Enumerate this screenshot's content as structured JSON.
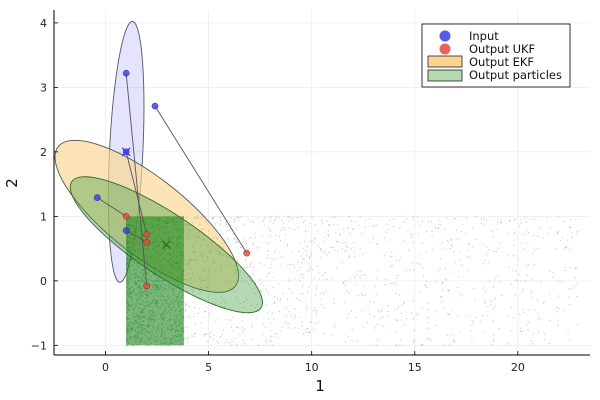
{
  "chart_data": {
    "type": "scatter",
    "title": "",
    "xlabel": "1",
    "ylabel": "2",
    "xlim": [
      -2.5,
      23.5
    ],
    "ylim": [
      -1.15,
      4.2
    ],
    "xticks": [
      0,
      5,
      10,
      15,
      20
    ],
    "yticks": [
      -1,
      0,
      1,
      2,
      3,
      4
    ],
    "grid": true,
    "legend_position": "top-right",
    "colors": {
      "input": "#3b3be8",
      "ukf": "#e8473c",
      "ekf_fill": "#fbd58f",
      "particles": "#1a8a1a",
      "connector": "#555555",
      "frame": "#000000"
    },
    "series": [
      {
        "name": "Input",
        "kind": "points",
        "points": [
          [
            1.0,
            3.22
          ],
          [
            2.4,
            2.71
          ],
          [
            1.0,
            2.0
          ],
          [
            -0.4,
            1.29
          ],
          [
            1.0,
            0.78
          ]
        ]
      },
      {
        "name": "Output UKF",
        "kind": "points",
        "points": [
          [
            2.0,
            -0.08
          ],
          [
            6.85,
            0.43
          ],
          [
            2.0,
            0.72
          ],
          [
            1.0,
            1.0
          ],
          [
            2.0,
            0.6
          ]
        ]
      },
      {
        "name": "Output EKF",
        "kind": "ellipse",
        "center": [
          2.0,
          1.0
        ],
        "semi_axes": [
          4.55,
          0.72
        ],
        "angle_deg": -12
      },
      {
        "name": "Output particles",
        "kind": "ellipse",
        "center": [
          2.95,
          0.56
        ],
        "semi_axes": [
          4.75,
          0.55
        ],
        "angle_deg": -11
      }
    ],
    "input_ellipse": {
      "center": [
        1.0,
        2.0
      ],
      "semi_axes": [
        2.05,
        0.8
      ],
      "angle_deg": 80
    },
    "mean_markers": [
      {
        "series": "Input",
        "x": 1.0,
        "y": 2.0
      },
      {
        "series": "Output particles",
        "x": 2.95,
        "y": 0.56
      }
    ],
    "connectors": [
      [
        [
          1.0,
          3.22
        ],
        [
          2.0,
          -0.08
        ]
      ],
      [
        [
          2.4,
          2.71
        ],
        [
          6.85,
          0.43
        ]
      ],
      [
        [
          1.0,
          2.0
        ],
        [
          2.0,
          0.72
        ]
      ],
      [
        [
          -0.4,
          1.29
        ],
        [
          1.0,
          1.0
        ]
      ],
      [
        [
          1.0,
          0.78
        ],
        [
          2.0,
          0.6
        ]
      ]
    ],
    "particle_cloud": {
      "x_range": [
        1.0,
        23.0
      ],
      "y_range": [
        -1.0,
        1.0
      ],
      "dense_region": [
        [
          1.0,
          3.8
        ],
        [
          -1.0,
          1.0
        ]
      ]
    }
  }
}
